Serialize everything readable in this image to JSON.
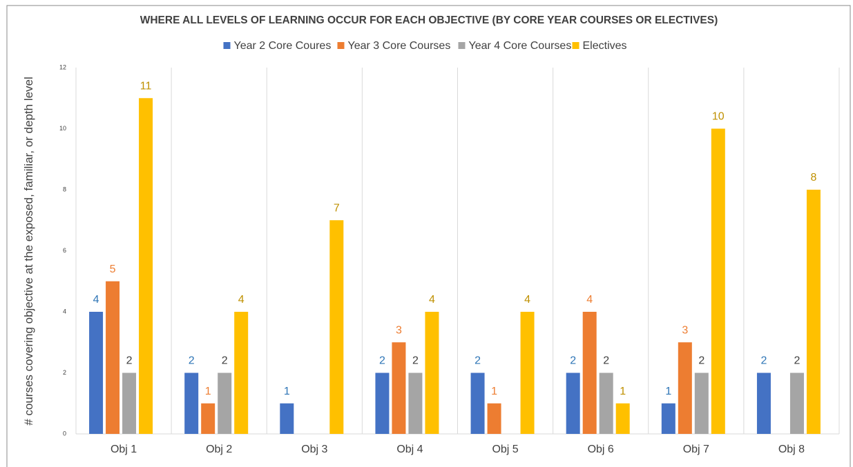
{
  "chart_data": {
    "type": "bar",
    "title": "WHERE ALL LEVELS OF LEARNING OCCUR FOR EACH OBJECTIVE (BY CORE YEAR COURSES OR ELECTIVES)",
    "y_label": "# courses covering objective at the exposed, familiar, or depth level",
    "categories": [
      "Obj 1",
      "Obj 2",
      "Obj 3",
      "Obj 4",
      "Obj 5",
      "Obj 6",
      "Obj 7",
      "Obj 8"
    ],
    "series": [
      {
        "name": "Year 2 Core Coures",
        "color": "#4472c4",
        "label_color": "#2e75b6",
        "values": [
          4,
          2,
          1,
          2,
          2,
          2,
          1,
          2
        ]
      },
      {
        "name": "Year 3 Core Courses",
        "color": "#ed7d31",
        "label_color": "#ed7d31",
        "values": [
          5,
          1,
          null,
          3,
          1,
          4,
          3,
          null
        ]
      },
      {
        "name": "Year 4 Core Courses",
        "color": "#a5a5a5",
        "label_color": "#404040",
        "values": [
          2,
          2,
          null,
          2,
          null,
          2,
          2,
          2
        ]
      },
      {
        "name": "Electives",
        "color": "#ffc000",
        "label_color": "#bf9000",
        "values": [
          11,
          4,
          7,
          4,
          4,
          1,
          10,
          8
        ]
      }
    ],
    "ylim": [
      0,
      12
    ],
    "yticks": [
      0,
      2,
      4,
      6,
      8,
      10,
      12
    ],
    "grid": "x",
    "legend": "top"
  }
}
